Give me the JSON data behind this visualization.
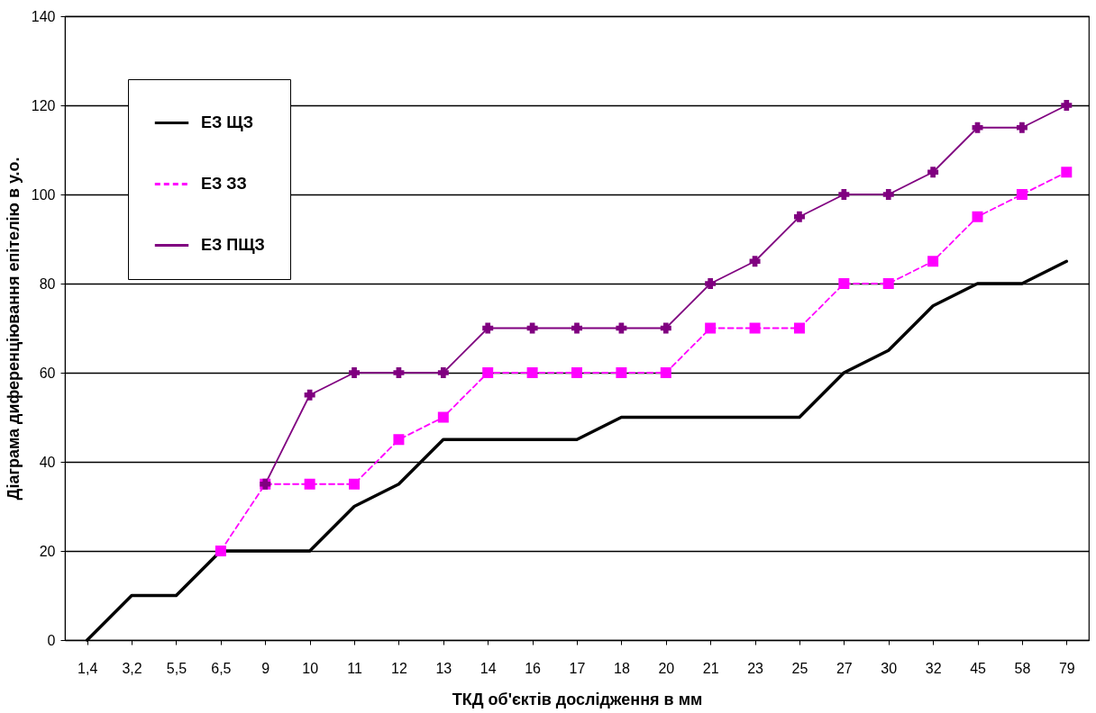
{
  "chart_data": {
    "type": "line",
    "xlabel": "ТКД об'єктів дослідження в мм",
    "ylabel": "Діаграма диференціювання епітелію в у.о.",
    "categories": [
      "1,4",
      "3,2",
      "5,5",
      "6,5",
      "9",
      "10",
      "11",
      "12",
      "13",
      "14",
      "16",
      "17",
      "18",
      "20",
      "21",
      "23",
      "25",
      "27",
      "30",
      "32",
      "45",
      "58",
      "79"
    ],
    "series": [
      {
        "name": "ЕЗ ЩЗ",
        "color": "#000000",
        "marker": "none",
        "line_style": "solid",
        "values": [
          0,
          10,
          10,
          20,
          20,
          20,
          30,
          35,
          45,
          45,
          45,
          45,
          50,
          50,
          50,
          50,
          50,
          60,
          65,
          75,
          80,
          80,
          85
        ]
      },
      {
        "name": "ЕЗ ЗЗ",
        "color": "#ff00ff",
        "marker": "square",
        "line_style": "dashed",
        "values": [
          null,
          null,
          null,
          20,
          35,
          35,
          35,
          45,
          50,
          60,
          60,
          60,
          60,
          60,
          70,
          70,
          70,
          80,
          80,
          85,
          95,
          100,
          105
        ]
      },
      {
        "name": "ЕЗ ПЩЗ",
        "color": "#800080",
        "marker": "cross",
        "line_style": "solid",
        "values": [
          null,
          null,
          null,
          null,
          35,
          55,
          60,
          60,
          60,
          70,
          70,
          70,
          70,
          70,
          80,
          85,
          95,
          100,
          100,
          105,
          115,
          115,
          120
        ]
      }
    ],
    "ylim": [
      0,
      140
    ],
    "yticks": [
      0,
      20,
      40,
      60,
      80,
      100,
      120,
      140
    ],
    "grid": "y",
    "legend": "top left"
  }
}
